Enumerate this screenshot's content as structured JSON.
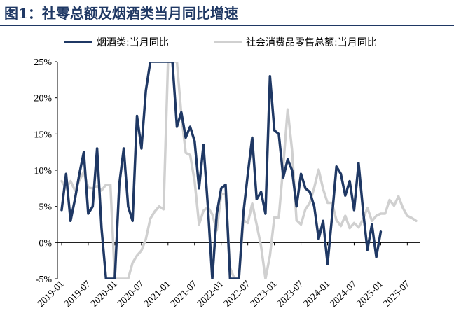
{
  "title": "图1：社零总额及烟酒类当月同比增速",
  "chart_data": {
    "type": "line",
    "title": "图1：社零总额及烟酒类当月同比增速",
    "xlabel": "",
    "ylabel": "",
    "ylim": [
      -5,
      25
    ],
    "y_ticks": [
      "25%",
      "20%",
      "15%",
      "10%",
      "5%",
      "0%",
      "-5%"
    ],
    "y_tick_values": [
      25,
      20,
      15,
      10,
      5,
      0,
      -5
    ],
    "x_ticks": [
      "2019-01",
      "2019-07",
      "2020-01",
      "2020-07",
      "2021-01",
      "2021-07",
      "2022-01",
      "2022-07",
      "2023-01",
      "2023-07",
      "2024-01",
      "2024-07",
      "2025-01",
      "2025-07"
    ],
    "legend_position": "top",
    "grid": false,
    "series": [
      {
        "name": "烟酒类:当月同比",
        "color": "#1f3864",
        "points": [
          [
            "2019-01",
            4.5
          ],
          [
            "2019-02",
            9.5
          ],
          [
            "2019-03",
            3.0
          ],
          [
            "2019-04",
            6.0
          ],
          [
            "2019-05",
            9.5
          ],
          [
            "2019-06",
            12.5
          ],
          [
            "2019-07",
            4.0
          ],
          [
            "2019-08",
            5.0
          ],
          [
            "2019-09",
            13.0
          ],
          [
            "2019-10",
            2.0
          ],
          [
            "2019-11",
            -5.0
          ],
          [
            "2019-12",
            -5.0
          ],
          [
            "2020-01",
            -5.0
          ],
          [
            "2020-02",
            8.0
          ],
          [
            "2020-03",
            13.0
          ],
          [
            "2020-04",
            5.0
          ],
          [
            "2020-05",
            3.0
          ],
          [
            "2020-06",
            17.5
          ],
          [
            "2020-07",
            13.0
          ],
          [
            "2020-08",
            21.0
          ],
          [
            "2020-09",
            25.0
          ],
          [
            "2020-10",
            25.0
          ],
          [
            "2020-11",
            25.0
          ],
          [
            "2020-12",
            25.0
          ],
          [
            "2021-01",
            25.0
          ],
          [
            "2021-02",
            25.0
          ],
          [
            "2021-03",
            16.0
          ],
          [
            "2021-04",
            18.0
          ],
          [
            "2021-05",
            14.5
          ],
          [
            "2021-06",
            16.0
          ],
          [
            "2021-07",
            14.0
          ],
          [
            "2021-08",
            7.5
          ],
          [
            "2021-09",
            13.5
          ],
          [
            "2021-10",
            5.0
          ],
          [
            "2021-11",
            -5.0
          ],
          [
            "2021-12",
            4.0
          ],
          [
            "2022-01",
            7.5
          ],
          [
            "2022-02",
            8.0
          ],
          [
            "2022-03",
            -5.0
          ],
          [
            "2022-04",
            -5.0
          ],
          [
            "2022-05",
            -5.0
          ],
          [
            "2022-06",
            4.0
          ],
          [
            "2022-07",
            9.5
          ],
          [
            "2022-08",
            14.5
          ],
          [
            "2022-09",
            6.0
          ],
          [
            "2022-10",
            7.0
          ],
          [
            "2022-11",
            4.0
          ],
          [
            "2022-12",
            23.0
          ],
          [
            "2023-01",
            15.5
          ],
          [
            "2023-02",
            15.0
          ],
          [
            "2023-03",
            9.0
          ],
          [
            "2023-04",
            11.5
          ],
          [
            "2023-05",
            10.0
          ],
          [
            "2023-06",
            5.0
          ],
          [
            "2023-07",
            9.5
          ],
          [
            "2023-08",
            7.5
          ],
          [
            "2023-09",
            7.0
          ],
          [
            "2023-10",
            5.0
          ],
          [
            "2023-11",
            0.5
          ],
          [
            "2023-12",
            3.0
          ],
          [
            "2024-01",
            -3.0
          ],
          [
            "2024-02",
            3.5
          ],
          [
            "2024-03",
            10.5
          ],
          [
            "2024-04",
            9.5
          ],
          [
            "2024-05",
            6.5
          ],
          [
            "2024-06",
            8.5
          ],
          [
            "2024-07",
            4.5
          ],
          [
            "2024-08",
            11.0
          ],
          [
            "2024-09",
            4.5
          ],
          [
            "2024-10",
            -1.0
          ],
          [
            "2024-11",
            2.5
          ],
          [
            "2024-12",
            -2.0
          ],
          [
            "2025-01",
            1.5
          ]
        ]
      },
      {
        "name": "社会消费品零售总额:当月同比",
        "color": "#d0d0d0",
        "points": [
          [
            "2019-01",
            8.5
          ],
          [
            "2019-02",
            7.5
          ],
          [
            "2019-03",
            8.5
          ],
          [
            "2019-04",
            7.2
          ],
          [
            "2019-05",
            8.6
          ],
          [
            "2019-06",
            9.8
          ],
          [
            "2019-07",
            7.6
          ],
          [
            "2019-08",
            7.5
          ],
          [
            "2019-09",
            7.8
          ],
          [
            "2019-10",
            7.2
          ],
          [
            "2019-11",
            8.0
          ],
          [
            "2019-12",
            8.0
          ],
          [
            "2020-01",
            -5.0
          ],
          [
            "2020-02",
            -5.0
          ],
          [
            "2020-03",
            -5.0
          ],
          [
            "2020-04",
            -5.0
          ],
          [
            "2020-05",
            -2.8
          ],
          [
            "2020-06",
            -1.8
          ],
          [
            "2020-07",
            -1.1
          ],
          [
            "2020-08",
            0.5
          ],
          [
            "2020-09",
            3.3
          ],
          [
            "2020-10",
            4.3
          ],
          [
            "2020-11",
            5.0
          ],
          [
            "2020-12",
            4.6
          ],
          [
            "2021-01",
            25.0
          ],
          [
            "2021-02",
            25.0
          ],
          [
            "2021-03",
            25.0
          ],
          [
            "2021-04",
            17.7
          ],
          [
            "2021-05",
            12.4
          ],
          [
            "2021-06",
            12.1
          ],
          [
            "2021-07",
            8.5
          ],
          [
            "2021-08",
            2.5
          ],
          [
            "2021-09",
            4.4
          ],
          [
            "2021-10",
            4.9
          ],
          [
            "2021-11",
            3.9
          ],
          [
            "2021-12",
            1.7
          ],
          [
            "2022-01",
            6.7
          ],
          [
            "2022-02",
            6.7
          ],
          [
            "2022-03",
            -3.5
          ],
          [
            "2022-04",
            -5.0
          ],
          [
            "2022-05",
            -5.0
          ],
          [
            "2022-06",
            3.1
          ],
          [
            "2022-07",
            2.7
          ],
          [
            "2022-08",
            5.4
          ],
          [
            "2022-09",
            2.5
          ],
          [
            "2022-10",
            -0.5
          ],
          [
            "2022-11",
            -5.0
          ],
          [
            "2022-12",
            -1.8
          ],
          [
            "2023-01",
            3.5
          ],
          [
            "2023-02",
            3.5
          ],
          [
            "2023-03",
            10.6
          ],
          [
            "2023-04",
            18.4
          ],
          [
            "2023-05",
            12.7
          ],
          [
            "2023-06",
            3.1
          ],
          [
            "2023-07",
            2.5
          ],
          [
            "2023-08",
            4.6
          ],
          [
            "2023-09",
            5.5
          ],
          [
            "2023-10",
            7.6
          ],
          [
            "2023-11",
            10.1
          ],
          [
            "2023-12",
            7.4
          ],
          [
            "2024-01",
            5.5
          ],
          [
            "2024-02",
            5.5
          ],
          [
            "2024-03",
            3.1
          ],
          [
            "2024-04",
            2.3
          ],
          [
            "2024-05",
            3.7
          ],
          [
            "2024-06",
            2.0
          ],
          [
            "2024-07",
            2.7
          ],
          [
            "2024-08",
            2.1
          ],
          [
            "2024-09",
            3.2
          ],
          [
            "2024-10",
            4.8
          ],
          [
            "2024-11",
            3.0
          ],
          [
            "2024-12",
            3.7
          ],
          [
            "2025-01",
            4.0
          ],
          [
            "2025-02",
            4.0
          ],
          [
            "2025-03",
            5.9
          ],
          [
            "2025-04",
            5.1
          ],
          [
            "2025-05",
            6.4
          ],
          [
            "2025-06",
            4.8
          ],
          [
            "2025-07",
            3.7
          ],
          [
            "2025-08",
            3.4
          ],
          [
            "2025-09",
            3.0
          ]
        ]
      }
    ]
  }
}
